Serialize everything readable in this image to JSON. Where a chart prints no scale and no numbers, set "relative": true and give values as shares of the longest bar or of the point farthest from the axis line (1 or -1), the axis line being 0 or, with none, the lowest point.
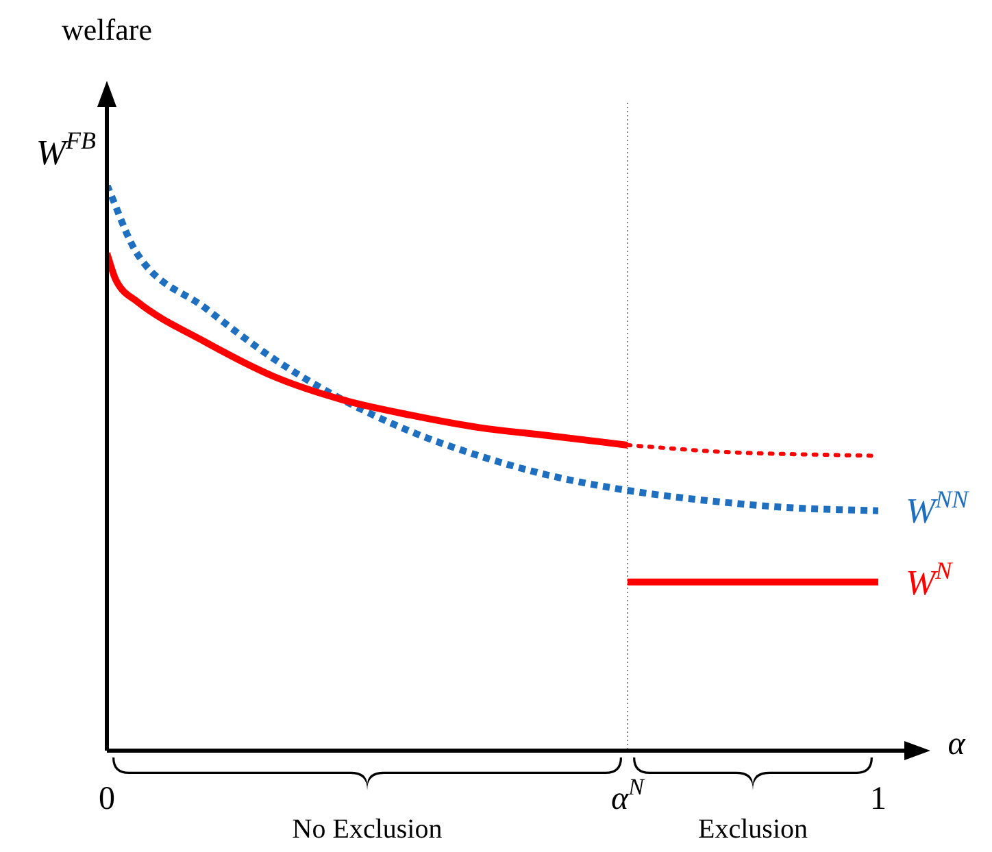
{
  "chart_data": {
    "type": "line",
    "relative": true,
    "xlabel": "α",
    "ylabel": "welfare",
    "xlim": [
      0,
      1
    ],
    "xticks": [
      0,
      {
        "value": 0.675,
        "label": "α$^{N}$"
      },
      1
    ],
    "marker": "none",
    "legend": false,
    "grid": false,
    "series": [
      {
        "color": "#ff0000",
        "line_style": "solid",
        "x": [
          0,
          0.012,
          0.039,
          0.128,
          0.217,
          0.306,
          0.394,
          0.483,
          0.572,
          0.675
        ],
        "values": [
          0.879,
          0.831,
          0.794,
          0.722,
          0.661,
          0.62,
          0.593,
          0.571,
          0.557,
          0.54
        ]
      },
      {
        "color": "#ff0000",
        "line_style": "dotted",
        "x": [
          0.675,
          0.8,
          1
        ],
        "values": [
          0.54,
          0.528,
          0.521
        ]
      },
      {
        "name": "W$^{NN}$",
        "color": "#1f6fc0",
        "line_style": "dashed",
        "x": [
          0,
          0.039,
          0.128,
          0.217,
          0.306,
          0.394,
          0.483,
          0.572,
          0.675,
          0.785,
          0.892,
          1
        ],
        "values": [
          1,
          0.879,
          0.782,
          0.692,
          0.62,
          0.564,
          0.521,
          0.487,
          0.46,
          0.441,
          0.429,
          0.424
        ]
      },
      {
        "name": "W$^{N}$",
        "color": "#ff0000",
        "line_style": "solid",
        "x": [
          0.675,
          1
        ],
        "values": [
          0.298,
          0.298
        ]
      }
    ],
    "ref_lines": [
      {
        "axis": "x",
        "value": 0.675,
        "color": "#808080",
        "line_style": "dotted"
      }
    ],
    "annotations": [
      {
        "text": "W$^{FB}$",
        "x": 0,
        "y": 1
      },
      "No Exclusion",
      "Exclusion"
    ]
  }
}
